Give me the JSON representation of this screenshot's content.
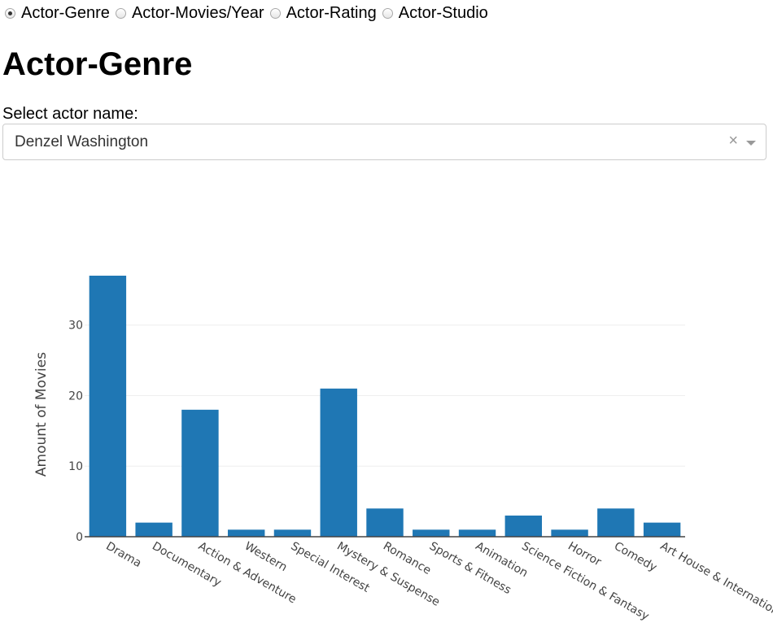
{
  "radio_options": [
    {
      "label": "Actor-Genre",
      "checked": true
    },
    {
      "label": "Actor-Movies/Year",
      "checked": false
    },
    {
      "label": "Actor-Rating",
      "checked": false
    },
    {
      "label": "Actor-Studio",
      "checked": false
    }
  ],
  "page_title": "Actor-Genre",
  "select": {
    "label": "Select actor name:",
    "value": "Denzel Washington",
    "clear_glyph": "×"
  },
  "chart_data": {
    "type": "bar",
    "categories": [
      "Drama",
      "Documentary",
      "Action & Adventure",
      "Western",
      "Special Interest",
      "Mystery & Suspense",
      "Romance",
      "Sports & Fitness",
      "Animation",
      "Science Fiction & Fantasy",
      "Horror",
      "Comedy",
      "Art House & International"
    ],
    "values": [
      37,
      2,
      18,
      1,
      1,
      21,
      4,
      1,
      1,
      3,
      1,
      4,
      2
    ],
    "title": "",
    "xlabel": "",
    "ylabel": "Amount of Movies",
    "ylim": [
      0,
      37
    ],
    "yticks": [
      0,
      10,
      20,
      30
    ],
    "grid": true,
    "bar_color": "#1f77b4"
  }
}
